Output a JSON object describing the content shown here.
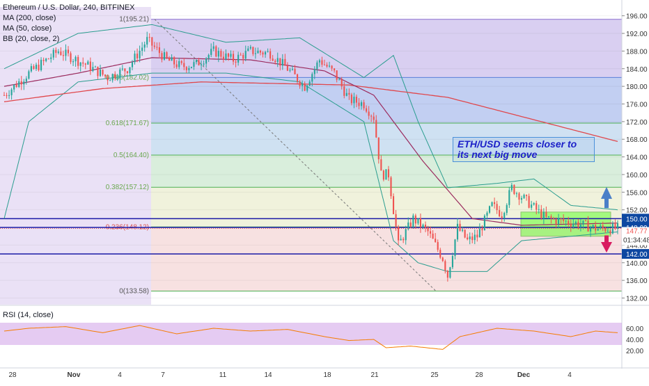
{
  "header": {
    "symbol_line": "Ethereum / U.S. Dollar, 240, BITFINEX",
    "indicators": [
      "MA (200, close)",
      "MA (50, close)",
      "BB (20, close, 2)"
    ]
  },
  "annotation": {
    "line1": "ETH/USD seems closer to",
    "line2": "its next big move"
  },
  "rsi": {
    "label": "RSI (14, close)"
  },
  "colors": {
    "up": "#26a69a",
    "down": "#ef5350",
    "ma200": "#e0474c",
    "ma50": "#9b2b5e",
    "bb": "#2a9d8f",
    "fib_line": "#4caf50",
    "hline": "#1a1aa6",
    "rsi_line": "#f57c00",
    "rsi_band": "#c58be3",
    "zone": "#66ff33",
    "badge": "#0d47a1",
    "current_badge": "#ef5350",
    "fib_100_band": "#b9a8e6",
    "fib_786_band": "#8fa8e8",
    "fib_618_band": "#a8c8e8",
    "fib_500_band": "#b9e0c0",
    "fib_382_band": "#e3e8c0",
    "fib_236_band": "#f0c8c8"
  },
  "chart_data": {
    "type": "candlestick",
    "symbol": "ETH/USD",
    "x_ticks": [
      "28",
      "Nov",
      "4",
      "7",
      "11",
      "14",
      "18",
      "21",
      "25",
      "28",
      "Dec",
      "4"
    ],
    "y_ticks": [
      196,
      192,
      188,
      184,
      180,
      176,
      172,
      168,
      164,
      160,
      156,
      152,
      148,
      144,
      140,
      136,
      132
    ],
    "y_tick_labels": [
      "196.00",
      "192.00",
      "188.00",
      "184.00",
      "180.00",
      "176.00",
      "172.00",
      "168.00",
      "164.00",
      "160.00",
      "156.00",
      "152.00",
      "148.00",
      "144.00",
      "140.00",
      "136.00",
      "132.00"
    ],
    "ylim": [
      130.5,
      198
    ],
    "fibonacci": [
      {
        "ratio": "1",
        "value": 195.21,
        "label": "1(195.21)"
      },
      {
        "ratio": "0.786",
        "value": 182.02,
        "label": "0.786(182.02)"
      },
      {
        "ratio": "0.618",
        "value": 171.67,
        "label": "0.618(171.67)"
      },
      {
        "ratio": "0.5",
        "value": 164.4,
        "label": "0.5(164.40)"
      },
      {
        "ratio": "0.382",
        "value": 157.12,
        "label": "0.382(157.12)"
      },
      {
        "ratio": "0.236",
        "value": 148.12,
        "label": "0.236(148.12)"
      },
      {
        "ratio": "0",
        "value": 133.58,
        "label": "0(133.58)"
      }
    ],
    "horizontal_lines": [
      {
        "value": 150.0,
        "label": "150.00"
      },
      {
        "value": 148.0,
        "label": "148.00"
      },
      {
        "value": 142.0,
        "label": "142.00"
      }
    ],
    "current_price": {
      "value": 147.77,
      "label": "147.77",
      "countdown": "01:34:48"
    },
    "consolidation_zone": {
      "high": 151.5,
      "low": 146.0
    },
    "anchors": [
      {
        "x": 0,
        "y": 178.0
      },
      {
        "x": 10,
        "y": 183.0
      },
      {
        "x": 22,
        "y": 188.0
      },
      {
        "x": 33,
        "y": 185.0
      },
      {
        "x": 42,
        "y": 182.0
      },
      {
        "x": 50,
        "y": 184.0
      },
      {
        "x": 58,
        "y": 190.5
      },
      {
        "x": 66,
        "y": 186.0
      },
      {
        "x": 72,
        "y": 184.5
      },
      {
        "x": 78,
        "y": 185.0
      },
      {
        "x": 85,
        "y": 188.0
      },
      {
        "x": 93,
        "y": 186.0
      },
      {
        "x": 100,
        "y": 188.0
      },
      {
        "x": 108,
        "y": 187.5
      },
      {
        "x": 115,
        "y": 184.0
      },
      {
        "x": 122,
        "y": 180.0
      },
      {
        "x": 128,
        "y": 186.0
      },
      {
        "x": 134,
        "y": 183.0
      },
      {
        "x": 140,
        "y": 177.0
      },
      {
        "x": 146,
        "y": 176.0
      },
      {
        "x": 150,
        "y": 173.0
      },
      {
        "x": 153,
        "y": 160.0
      },
      {
        "x": 156,
        "y": 160.0
      },
      {
        "x": 160,
        "y": 144.0
      },
      {
        "x": 166,
        "y": 150.0
      },
      {
        "x": 172,
        "y": 147.0
      },
      {
        "x": 178,
        "y": 141.0
      },
      {
        "x": 180,
        "y": 137.0
      },
      {
        "x": 184,
        "y": 148.0
      },
      {
        "x": 188,
        "y": 145.0
      },
      {
        "x": 192,
        "y": 146.0
      },
      {
        "x": 198,
        "y": 153.0
      },
      {
        "x": 202,
        "y": 151.0
      },
      {
        "x": 206,
        "y": 157.0
      },
      {
        "x": 210,
        "y": 155.0
      },
      {
        "x": 214,
        "y": 153.0
      },
      {
        "x": 220,
        "y": 150.0
      },
      {
        "x": 232,
        "y": 149.0
      },
      {
        "x": 240,
        "y": 147.8
      },
      {
        "x": 249,
        "y": 147.8
      }
    ],
    "ma200": [
      {
        "x": 0,
        "y": 176.5
      },
      {
        "x": 40,
        "y": 179.5
      },
      {
        "x": 80,
        "y": 181.0
      },
      {
        "x": 140,
        "y": 180.3
      },
      {
        "x": 180,
        "y": 177.5
      },
      {
        "x": 249,
        "y": 167.5
      }
    ],
    "ma50": [
      {
        "x": 0,
        "y": 180
      },
      {
        "x": 30,
        "y": 183
      },
      {
        "x": 60,
        "y": 186.5
      },
      {
        "x": 100,
        "y": 186
      },
      {
        "x": 130,
        "y": 183.5
      },
      {
        "x": 150,
        "y": 178
      },
      {
        "x": 170,
        "y": 163
      },
      {
        "x": 190,
        "y": 150
      },
      {
        "x": 210,
        "y": 148.5
      },
      {
        "x": 249,
        "y": 149
      }
    ],
    "bb_upper": [
      {
        "x": 0,
        "y": 184
      },
      {
        "x": 30,
        "y": 192
      },
      {
        "x": 60,
        "y": 194
      },
      {
        "x": 90,
        "y": 190
      },
      {
        "x": 120,
        "y": 191
      },
      {
        "x": 146,
        "y": 182
      },
      {
        "x": 158,
        "y": 187
      },
      {
        "x": 168,
        "y": 172
      },
      {
        "x": 180,
        "y": 157
      },
      {
        "x": 200,
        "y": 158
      },
      {
        "x": 215,
        "y": 159
      },
      {
        "x": 230,
        "y": 153
      },
      {
        "x": 249,
        "y": 152
      }
    ],
    "bb_lower": [
      {
        "x": 0,
        "y": 150
      },
      {
        "x": 10,
        "y": 172
      },
      {
        "x": 30,
        "y": 181
      },
      {
        "x": 60,
        "y": 183
      },
      {
        "x": 90,
        "y": 183
      },
      {
        "x": 120,
        "y": 181
      },
      {
        "x": 146,
        "y": 172
      },
      {
        "x": 158,
        "y": 145
      },
      {
        "x": 168,
        "y": 140
      },
      {
        "x": 180,
        "y": 138
      },
      {
        "x": 196,
        "y": 138
      },
      {
        "x": 210,
        "y": 145
      },
      {
        "x": 230,
        "y": 146
      },
      {
        "x": 249,
        "y": 147
      }
    ],
    "rsi_series": [
      {
        "x": 0,
        "y": 55
      },
      {
        "x": 10,
        "y": 60
      },
      {
        "x": 25,
        "y": 63
      },
      {
        "x": 40,
        "y": 52
      },
      {
        "x": 55,
        "y": 65
      },
      {
        "x": 70,
        "y": 50
      },
      {
        "x": 85,
        "y": 60
      },
      {
        "x": 100,
        "y": 55
      },
      {
        "x": 115,
        "y": 58
      },
      {
        "x": 130,
        "y": 45
      },
      {
        "x": 140,
        "y": 38
      },
      {
        "x": 150,
        "y": 40
      },
      {
        "x": 155,
        "y": 25
      },
      {
        "x": 165,
        "y": 28
      },
      {
        "x": 178,
        "y": 22
      },
      {
        "x": 185,
        "y": 45
      },
      {
        "x": 200,
        "y": 60
      },
      {
        "x": 215,
        "y": 55
      },
      {
        "x": 230,
        "y": 45
      },
      {
        "x": 240,
        "y": 55
      },
      {
        "x": 249,
        "y": 52
      }
    ],
    "rsi_ticks": [
      {
        "value": 60,
        "label": "60.00"
      },
      {
        "value": 40,
        "label": "40.00"
      },
      {
        "value": 20,
        "label": "20.00"
      }
    ],
    "rsi_band": [
      30,
      70
    ]
  }
}
